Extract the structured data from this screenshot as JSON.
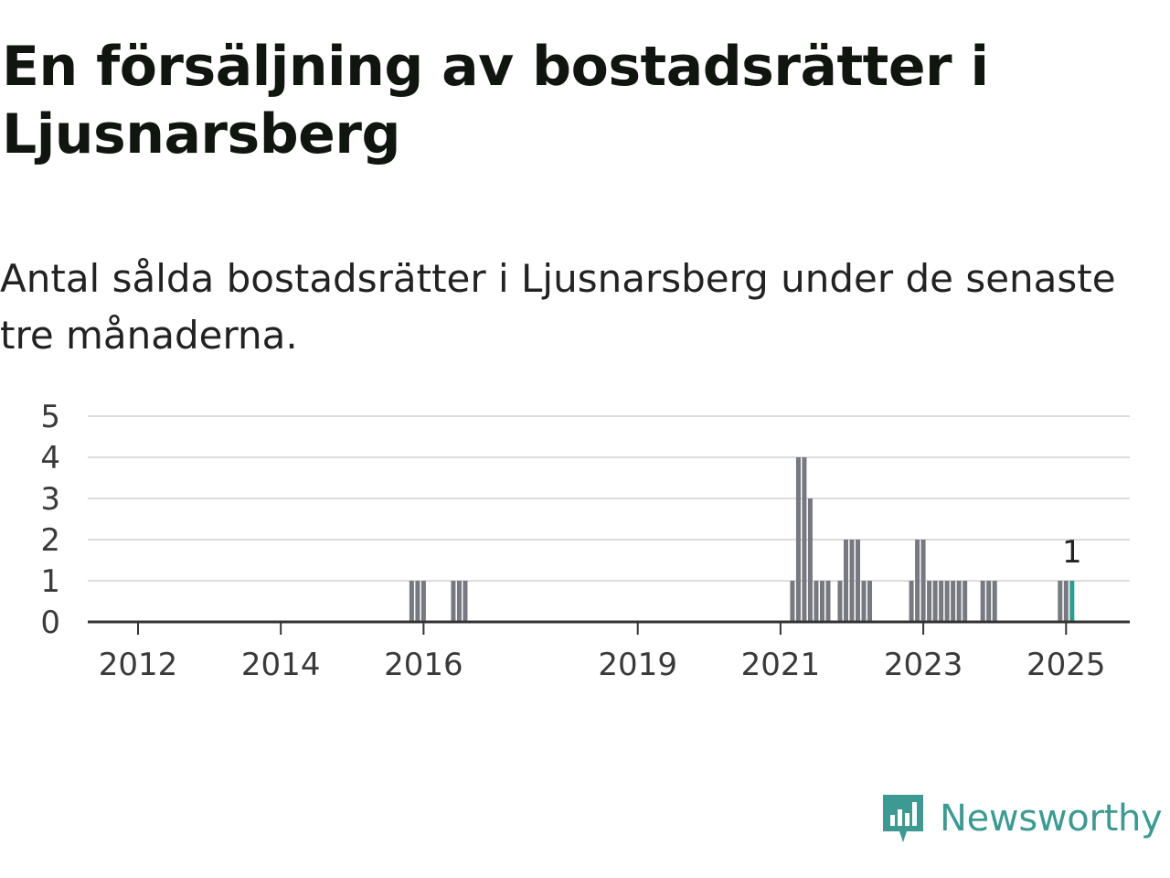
{
  "title": "En försäljning av bostadsrätter i Ljusnarsberg",
  "subtitle": "Antal sålda bostadsrätter i Ljusnarsberg under de senaste tre månaderna.",
  "brand": {
    "name": "Newsworthy",
    "icon": "newsworthy-logo-icon",
    "color": "#3d9a92"
  },
  "chart_data": {
    "type": "bar",
    "ylim": [
      0,
      5
    ],
    "yticks": [
      0,
      1,
      2,
      3,
      4,
      5
    ],
    "xticks": [
      "2012",
      "2014",
      "2016",
      "2019",
      "2021",
      "2023",
      "2025"
    ],
    "grid": true,
    "bar_color": "#777880",
    "highlight_color": "#2a9d8f",
    "highlight_label": "1",
    "bars": [
      {
        "x": "2015-11",
        "y": 1
      },
      {
        "x": "2015-12",
        "y": 1
      },
      {
        "x": "2016-01",
        "y": 1
      },
      {
        "x": "2016-06",
        "y": 1
      },
      {
        "x": "2016-07",
        "y": 1
      },
      {
        "x": "2016-08",
        "y": 1
      },
      {
        "x": "2021-03",
        "y": 1
      },
      {
        "x": "2021-04",
        "y": 4
      },
      {
        "x": "2021-05",
        "y": 4
      },
      {
        "x": "2021-06",
        "y": 3
      },
      {
        "x": "2021-07",
        "y": 1
      },
      {
        "x": "2021-08",
        "y": 1
      },
      {
        "x": "2021-09",
        "y": 1
      },
      {
        "x": "2021-11",
        "y": 1
      },
      {
        "x": "2021-12",
        "y": 2
      },
      {
        "x": "2022-01",
        "y": 2
      },
      {
        "x": "2022-02",
        "y": 2
      },
      {
        "x": "2022-03",
        "y": 1
      },
      {
        "x": "2022-04",
        "y": 1
      },
      {
        "x": "2022-11",
        "y": 1
      },
      {
        "x": "2022-12",
        "y": 2
      },
      {
        "x": "2023-01",
        "y": 2
      },
      {
        "x": "2023-02",
        "y": 1
      },
      {
        "x": "2023-03",
        "y": 1
      },
      {
        "x": "2023-04",
        "y": 1
      },
      {
        "x": "2023-05",
        "y": 1
      },
      {
        "x": "2023-06",
        "y": 1
      },
      {
        "x": "2023-07",
        "y": 1
      },
      {
        "x": "2023-08",
        "y": 1
      },
      {
        "x": "2023-11",
        "y": 1
      },
      {
        "x": "2023-12",
        "y": 1
      },
      {
        "x": "2024-01",
        "y": 1
      },
      {
        "x": "2024-12",
        "y": 1
      },
      {
        "x": "2025-01",
        "y": 1
      },
      {
        "x": "2025-02",
        "y": 1,
        "highlight": true
      }
    ]
  }
}
